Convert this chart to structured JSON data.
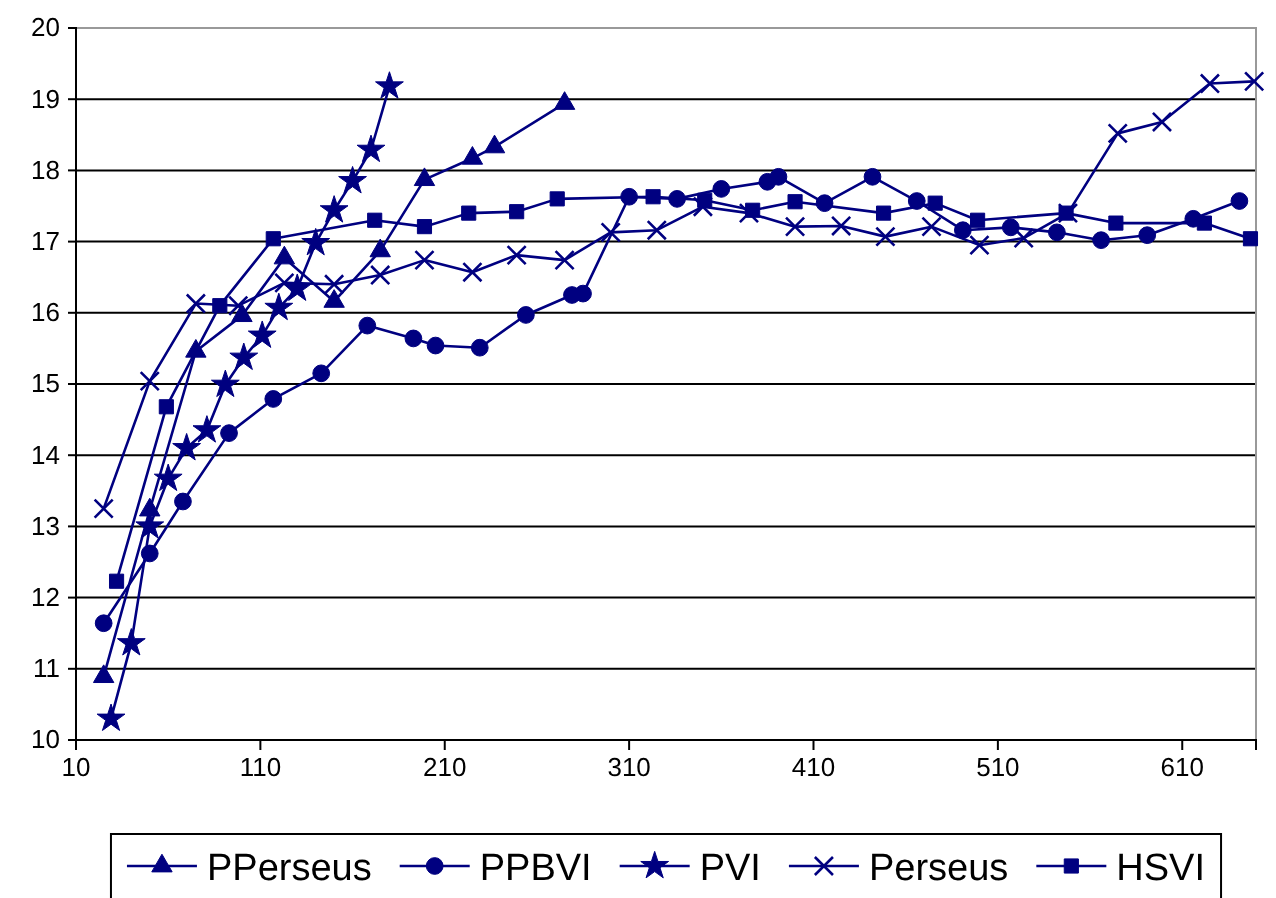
{
  "chart_data": {
    "type": "line",
    "xlim": [
      10,
      650
    ],
    "xticks": [
      10,
      110,
      210,
      310,
      410,
      510,
      610
    ],
    "ylim": [
      10,
      20
    ],
    "yticks": [
      10,
      11,
      12,
      13,
      14,
      15,
      16,
      17,
      18,
      19,
      20
    ],
    "grid": "y",
    "legend": "bottom",
    "line_style": "solid",
    "series": [
      {
        "name": "PPerseus",
        "color": "#000080",
        "marker": "triangle",
        "x": [
          25,
          50,
          75,
          100,
          123,
          150,
          175,
          199,
          225,
          237,
          275
        ],
        "values": [
          10.89,
          13.23,
          15.46,
          15.96,
          16.77,
          16.16,
          16.87,
          17.87,
          18.17,
          18.33,
          18.94
        ]
      },
      {
        "name": "PPBVI",
        "color": "#000080",
        "marker": "circle",
        "x": [
          25,
          50,
          68,
          93,
          117,
          143,
          168,
          193,
          205,
          229,
          254,
          279,
          285,
          310,
          336,
          360,
          385,
          391,
          416,
          442,
          466,
          491,
          517,
          542,
          566,
          591,
          616,
          641
        ],
        "values": [
          11.64,
          12.62,
          13.35,
          14.31,
          14.79,
          15.15,
          15.82,
          15.64,
          15.54,
          15.51,
          15.97,
          16.25,
          16.27,
          17.63,
          17.6,
          17.74,
          17.84,
          17.91,
          17.54,
          17.91,
          17.57,
          17.16,
          17.2,
          17.13,
          17.02,
          17.09,
          17.32,
          17.57
        ]
      },
      {
        "name": "PVI",
        "color": "#000080",
        "marker": "star",
        "x": [
          29,
          40,
          50,
          60,
          70,
          81,
          91,
          101,
          111,
          120,
          130,
          140,
          150,
          160,
          170,
          180
        ],
        "values": [
          10.3,
          11.36,
          13.0,
          13.67,
          14.1,
          14.35,
          14.99,
          15.37,
          15.68,
          16.07,
          16.34,
          16.98,
          17.44,
          17.85,
          18.29,
          19.18
        ]
      },
      {
        "name": "Perseus",
        "color": "#000080",
        "marker": "cross",
        "x": [
          25,
          50,
          75,
          98,
          123,
          150,
          175,
          199,
          225,
          249,
          275,
          300,
          325,
          350,
          375,
          400,
          425,
          449,
          474,
          500,
          524,
          548,
          575,
          599,
          625,
          649
        ],
        "values": [
          13.25,
          15.04,
          16.13,
          16.1,
          16.42,
          16.4,
          16.53,
          16.74,
          16.57,
          16.81,
          16.74,
          17.13,
          17.16,
          17.49,
          17.4,
          17.21,
          17.22,
          17.07,
          17.21,
          16.95,
          17.05,
          17.4,
          18.52,
          18.68,
          19.22,
          19.25
        ]
      },
      {
        "name": "HSVI",
        "color": "#000080",
        "marker": "square",
        "x": [
          32,
          59,
          88,
          117,
          172,
          199,
          223,
          249,
          271,
          323,
          351,
          377,
          400,
          448,
          476,
          499,
          547,
          574,
          622,
          647
        ],
        "values": [
          12.23,
          14.68,
          16.1,
          17.04,
          17.3,
          17.21,
          17.4,
          17.42,
          17.6,
          17.63,
          17.58,
          17.44,
          17.56,
          17.4,
          17.54,
          17.3,
          17.4,
          17.26,
          17.26,
          17.04
        ]
      }
    ]
  }
}
